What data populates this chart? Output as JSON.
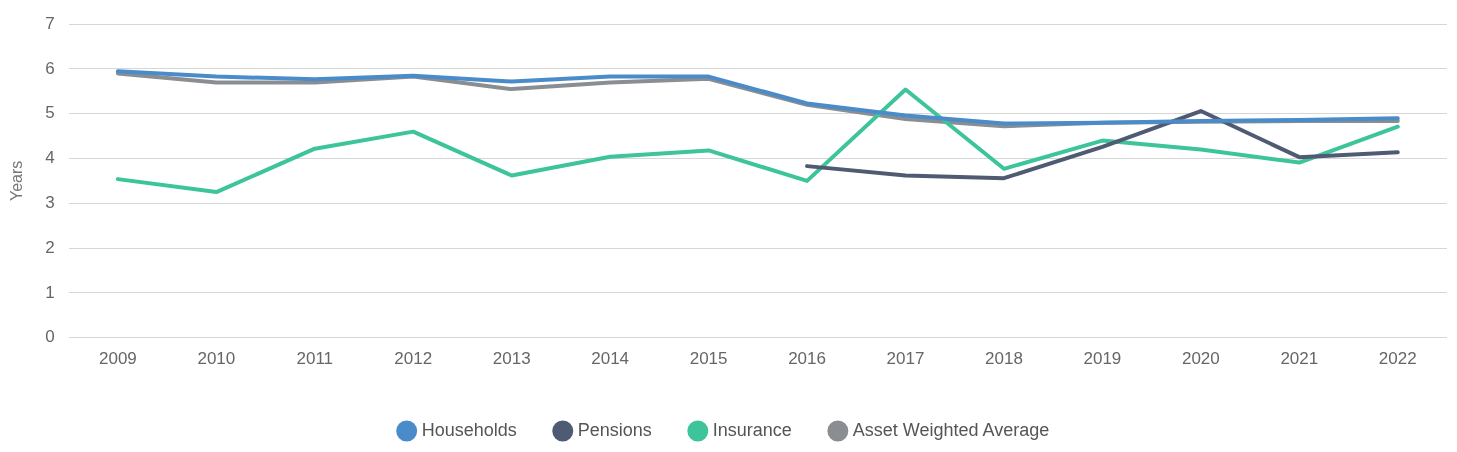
{
  "chart_data": {
    "type": "line",
    "ylabel": "Years",
    "categories": [
      "2009",
      "2010",
      "2011",
      "2012",
      "2013",
      "2014",
      "2015",
      "2016",
      "2017",
      "2018",
      "2019",
      "2020",
      "2021",
      "2022"
    ],
    "series": [
      {
        "name": "Households",
        "color": "#4a8bc9",
        "values": [
          5.95,
          5.83,
          5.77,
          5.85,
          5.72,
          5.83,
          5.83,
          5.23,
          4.96,
          4.78,
          4.8,
          4.84,
          4.86,
          4.9
        ]
      },
      {
        "name": "Pensions",
        "color": "#4f5b73",
        "values": [
          null,
          null,
          null,
          null,
          null,
          null,
          null,
          3.83,
          3.62,
          3.56,
          4.26,
          5.06,
          4.03,
          4.14
        ]
      },
      {
        "name": "Insurance",
        "color": "#3ec49b",
        "values": [
          3.54,
          3.25,
          4.22,
          4.6,
          3.62,
          4.04,
          4.18,
          3.5,
          5.54,
          3.77,
          4.4,
          4.2,
          3.91,
          4.71
        ]
      },
      {
        "name": "Asset Weighted Average",
        "color": "#8a8d91",
        "values": [
          5.9,
          5.7,
          5.7,
          5.83,
          5.55,
          5.7,
          5.78,
          5.2,
          4.88,
          4.72,
          4.8,
          4.82,
          4.84,
          4.84
        ]
      }
    ],
    "ylim": [
      0,
      7
    ],
    "yticks": [
      0,
      1,
      2,
      3,
      4,
      5,
      6,
      7
    ],
    "grid": "y",
    "legend": "bottom",
    "marker": "none",
    "line_style": "solid"
  }
}
